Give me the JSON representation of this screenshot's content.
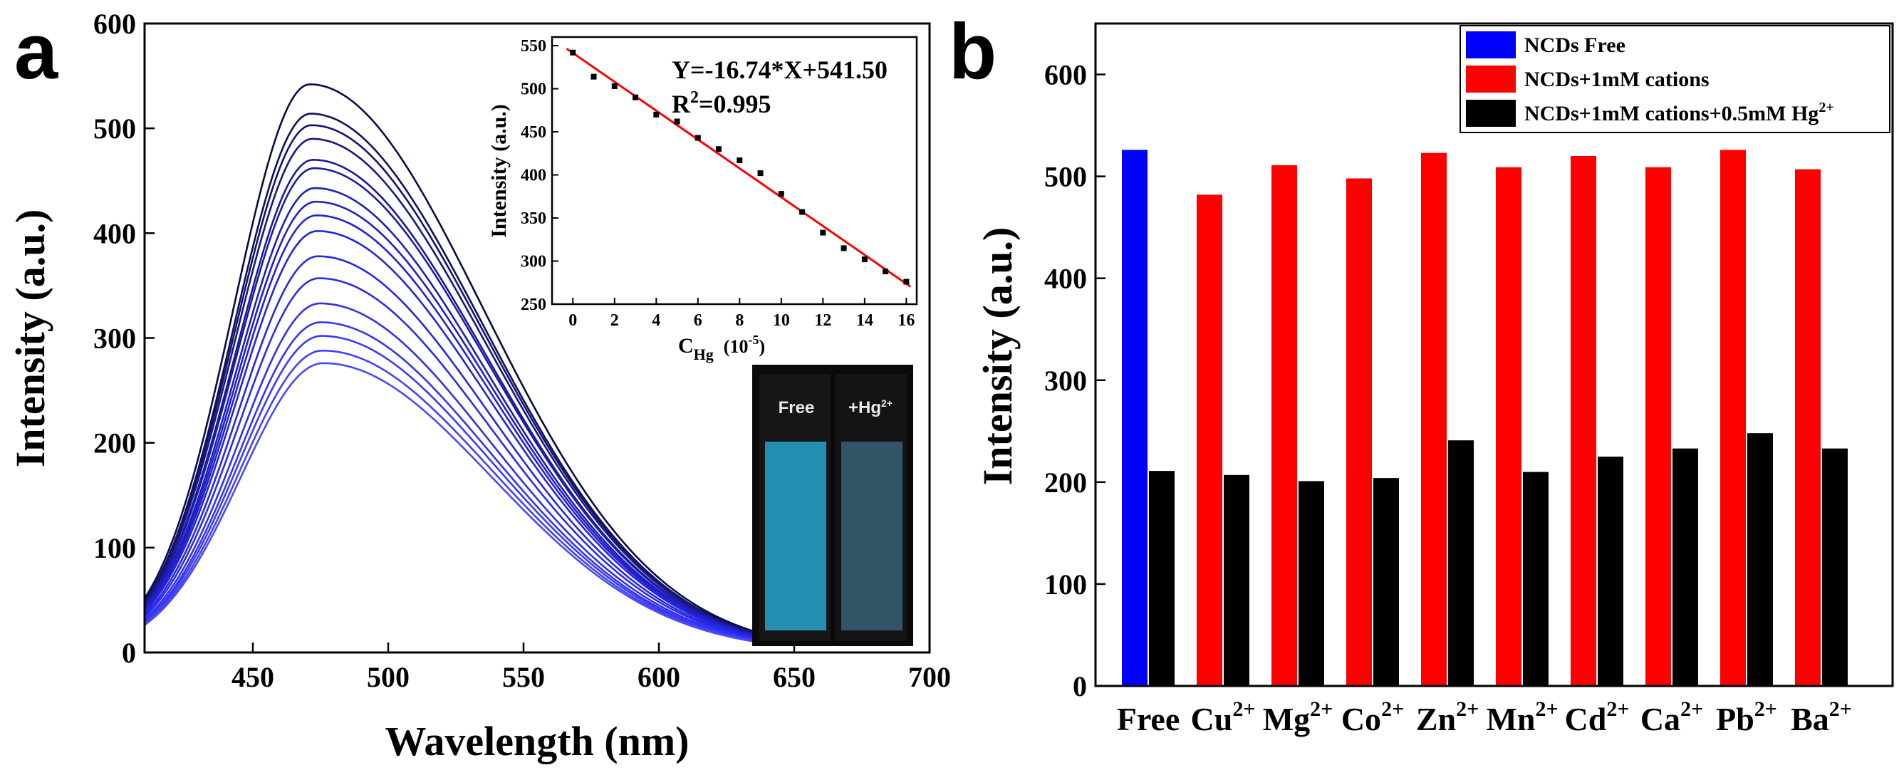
{
  "panel_letters": {
    "a": "a",
    "b": "b"
  },
  "chart_data": [
    {
      "id": "panel-a-main",
      "type": "line",
      "xlabel": "Wavelength (nm)",
      "ylabel": "Intensity (a.u.)",
      "xlim": [
        410,
        700
      ],
      "ylim": [
        0,
        600
      ],
      "xticks": [
        450,
        500,
        550,
        600,
        650,
        700
      ],
      "yticks": [
        0,
        100,
        200,
        300,
        400,
        500,
        600
      ],
      "curve_model": {
        "x_peak_start": 471,
        "x_peak_end": 476,
        "value_at_x": 410,
        "fraction_at_410": 0.095,
        "fraction_at_650": 0.02
      },
      "peak_intensities": [
        542,
        514,
        503,
        490,
        470,
        462,
        443,
        430,
        417,
        402,
        378,
        357,
        333,
        315,
        302,
        288,
        276
      ],
      "series_colors": [
        "#0b0b45",
        "#10105a",
        "#141470",
        "#171785",
        "#1a1a98",
        "#1c1caa",
        "#1e1eba",
        "#2020c8",
        "#2222d4",
        "#2424de",
        "#2727e6",
        "#2b2bec",
        "#3030f0",
        "#3535f3",
        "#3b3bf5",
        "#4242f7",
        "#4a4af8"
      ]
    },
    {
      "id": "panel-a-inset",
      "type": "scatter",
      "xlabel": "C",
      "xlabel_sub": "Hg",
      "xlabel_unit": "(10",
      "xlabel_exp": "-5",
      "xlabel_close": ")",
      "ylabel": "Intensity (a.u.)",
      "xlim": [
        -1,
        16.5
      ],
      "ylim": [
        250,
        560
      ],
      "xticks": [
        0,
        2,
        4,
        6,
        8,
        10,
        12,
        14,
        16
      ],
      "yticks": [
        250,
        300,
        350,
        400,
        450,
        500,
        550
      ],
      "x": [
        0,
        1,
        2,
        3,
        4,
        5,
        6,
        7,
        8,
        9,
        10,
        11,
        12,
        13,
        14,
        15,
        16
      ],
      "y": [
        542,
        514,
        503,
        490,
        470,
        462,
        443,
        430,
        417,
        402,
        378,
        357,
        333,
        315,
        302,
        288,
        276
      ],
      "fit": {
        "slope": -16.74,
        "intercept": 541.5,
        "color": "#ff0000"
      },
      "equation": "Y=-16.74*X+541.50",
      "r2_prefix": "R",
      "r2_exp": "2",
      "r2_value": "=0.995"
    },
    {
      "id": "panel-b",
      "type": "bar",
      "ylabel": "Intensity (a.u.)",
      "ylim": [
        0,
        650
      ],
      "yticks": [
        0,
        100,
        200,
        300,
        400,
        500,
        600
      ],
      "categories": [
        {
          "base": "Free",
          "sup": ""
        },
        {
          "base": "Cu",
          "sup": "2+"
        },
        {
          "base": "Mg",
          "sup": "2+"
        },
        {
          "base": "Co",
          "sup": "2+"
        },
        {
          "base": "Zn",
          "sup": "2+"
        },
        {
          "base": "Mn",
          "sup": "2+"
        },
        {
          "base": "Cd",
          "sup": "2+"
        },
        {
          "base": "Ca",
          "sup": "2+"
        },
        {
          "base": "Pb",
          "sup": "2+"
        },
        {
          "base": "Ba",
          "sup": "2+"
        }
      ],
      "series": [
        {
          "name": "NCDs+1mM cations",
          "color": "#ff0000",
          "free_color": "#0000ff",
          "values": [
            526,
            482,
            511,
            498,
            523,
            509,
            520,
            509,
            526,
            507
          ]
        },
        {
          "name": "NCDs+1mM cations+0.5mM Hg",
          "name_sup": "2+",
          "color": "#000000",
          "values": [
            211,
            207,
            201,
            204,
            241,
            210,
            225,
            233,
            248,
            233
          ]
        }
      ],
      "legend": [
        {
          "label": "NCDs Free",
          "sup": "",
          "color": "#0000ff"
        },
        {
          "label": "NCDs+1mM cations",
          "sup": "",
          "color": "#ff0000"
        },
        {
          "label": "NCDs+1mM cations+0.5mM Hg",
          "sup": "2+",
          "color": "#000000"
        }
      ]
    }
  ],
  "photo": {
    "label_free": "Free",
    "label_hg_prefix": "+Hg",
    "label_hg_sup": "2+",
    "cuvette_color_free": "#27a9d6",
    "cuvette_color_hg": "#3a6f86"
  }
}
